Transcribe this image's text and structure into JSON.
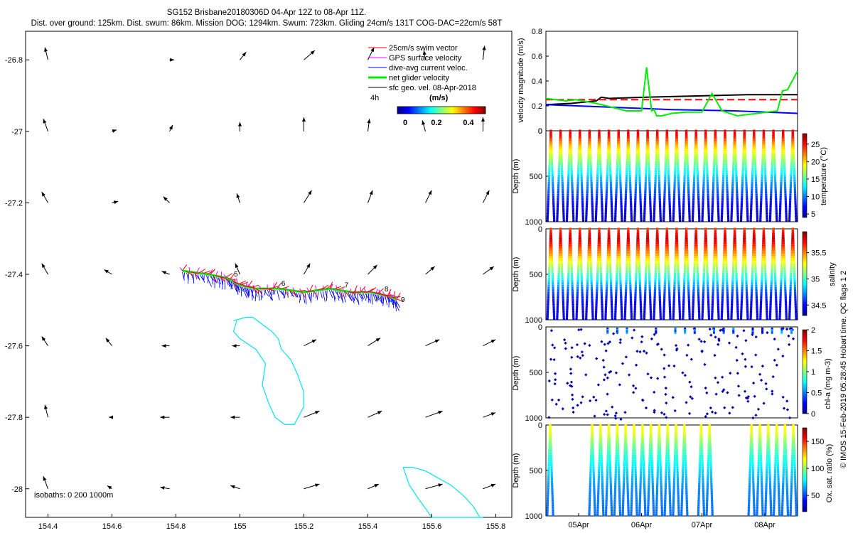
{
  "title": {
    "line1": "SG152 Brisbane20180306D 04-Apr 12Z to 08-Apr 11Z.",
    "line2": "Dist. over ground: 125km. Dist. swum: 86km. Mission DOG: 1294km. Swum: 723km. Gliding 24cm/s 131T COG-DAC=22cm/s 58T"
  },
  "colors": {
    "swim": "#ff0000",
    "gps": "#ff00ff",
    "dac": "#0000ff",
    "net": "#00ee00",
    "sfc": "#000000",
    "isobath": "#00e5ee",
    "vel_black": "#000000",
    "vel_red": "#ff0000",
    "vel_blue": "#0000ff",
    "vel_green": "#00ee00"
  },
  "map": {
    "xticks": [
      "154.4",
      "154.6",
      "154.8",
      "155",
      "155.2",
      "155.4",
      "155.6",
      "155.8"
    ],
    "yticks": [
      "-26.8",
      "-27",
      "-27.2",
      "-27.4",
      "-27.6",
      "-27.8",
      "-28"
    ],
    "xlim": [
      154.33,
      155.85
    ],
    "ylim": [
      -28.08,
      -26.72
    ],
    "legend": [
      {
        "label": "25cm/s swim vector",
        "color_key": "swim"
      },
      {
        "label": "GPS surface velocity",
        "color_key": "gps"
      },
      {
        "label": "dive-avg current veloc.",
        "color_key": "dac"
      },
      {
        "label": "net glider velocity",
        "color_key": "net"
      },
      {
        "label": "sfc geo. vel. 08-Apr-2018",
        "color_key": "sfc"
      }
    ],
    "legend_time_label": "4h",
    "colorbar_unit": "(m/s)",
    "colorbar_ticks": [
      "0",
      "0.2",
      "0.4"
    ],
    "isobaths_label": "isobaths: 0   200  1000m",
    "track_markers": [
      "5",
      "6",
      "7",
      "8",
      "9"
    ],
    "track": {
      "lon": [
        154.82,
        154.9,
        154.96,
        155.0,
        155.05,
        155.12,
        155.2,
        155.28,
        155.35,
        155.41,
        155.46,
        155.49
      ],
      "lat": [
        -27.39,
        -27.4,
        -27.41,
        -27.43,
        -27.44,
        -27.44,
        -27.45,
        -27.44,
        -27.45,
        -27.45,
        -27.46,
        -27.47
      ]
    },
    "isobath_1000m": {
      "lon": [
        154.98,
        155.02,
        155.04,
        155.07,
        155.1,
        155.12,
        155.13,
        155.16,
        155.18,
        155.2,
        155.2,
        155.17,
        155.14,
        155.11,
        155.09,
        155.07,
        155.08,
        155.05,
        155.0,
        154.98,
        154.99
      ],
      "lat": [
        -27.53,
        -27.52,
        -27.52,
        -27.54,
        -27.56,
        -27.58,
        -27.61,
        -27.64,
        -27.68,
        -27.73,
        -27.77,
        -27.82,
        -27.82,
        -27.8,
        -27.76,
        -27.71,
        -27.65,
        -27.61,
        -27.58,
        -27.56,
        -27.53
      ]
    },
    "isobath_200m": {
      "lon": [
        155.51,
        155.54,
        155.58,
        155.62,
        155.66,
        155.7,
        155.73,
        155.75,
        155.76,
        155.6,
        155.56,
        155.53,
        155.51
      ],
      "lat": [
        -27.94,
        -27.94,
        -27.95,
        -27.97,
        -27.99,
        -28.02,
        -28.05,
        -28.08,
        -28.08,
        -28.08,
        -28.03,
        -27.99,
        -27.94
      ]
    },
    "sfc_vectors": {
      "note": "surface geostrophic velocity vectors (u,v in m/s) on map grid",
      "lon": [
        154.4,
        154.6,
        154.78,
        155.0,
        155.2,
        155.4,
        155.58,
        155.76
      ],
      "lat": [
        -26.8,
        -27.0,
        -27.2,
        -27.4,
        -27.6,
        -27.8,
        -28.0
      ],
      "u": [
        [
          -0.02,
          0.0,
          0.03,
          0.04,
          0.07,
          0.04,
          -0.01,
          0.01
        ],
        [
          -0.03,
          0.03,
          0.02,
          0.0,
          0.0,
          0.01,
          -0.02,
          0.0
        ],
        [
          -0.04,
          0.04,
          -0.04,
          -0.02,
          0.05,
          0.03,
          0.04,
          0.04
        ],
        [
          -0.04,
          -0.05,
          -0.05,
          -0.03,
          0.04,
          0.06,
          0.06,
          0.07
        ],
        [
          -0.04,
          -0.04,
          -0.05,
          -0.05,
          0.08,
          0.08,
          0.09,
          0.08
        ],
        [
          -0.02,
          -0.02,
          -0.06,
          -0.06,
          0.1,
          0.09,
          0.11,
          0.08
        ],
        [
          -0.03,
          -0.03,
          -0.06,
          -0.06,
          0.1,
          0.07,
          0.11,
          0.08
        ]
      ],
      "v": [
        [
          0.08,
          0.0,
          0.0,
          0.05,
          0.06,
          0.08,
          0.06,
          0.09
        ],
        [
          0.08,
          0.01,
          0.04,
          0.06,
          0.09,
          0.08,
          0.07,
          0.09
        ],
        [
          0.07,
          0.01,
          0.04,
          0.06,
          0.08,
          0.08,
          0.08,
          0.08
        ],
        [
          0.07,
          0.03,
          0.02,
          0.07,
          0.07,
          0.06,
          0.05,
          0.05
        ],
        [
          0.06,
          0.05,
          0.0,
          0.0,
          0.04,
          0.05,
          0.04,
          0.04
        ],
        [
          0.08,
          0.0,
          0.0,
          0.0,
          0.04,
          0.04,
          0.04,
          0.03
        ],
        [
          0.08,
          0.02,
          0.01,
          0.02,
          0.03,
          0.03,
          0.03,
          0.03
        ]
      ]
    }
  },
  "chart_data": [
    {
      "type": "line",
      "title": "",
      "ylabel": "velocity magnitude (m/s)",
      "ylim": [
        0,
        0.8
      ],
      "yticks": [
        "0",
        "0.2",
        "0.4",
        "0.6",
        "0.8"
      ],
      "xlim": [
        0,
        1
      ],
      "series": [
        {
          "name": "sfc geo. vel.",
          "color_key": "vel_black",
          "dashed": false,
          "x": [
            0.0,
            0.1,
            0.2,
            0.22,
            0.25,
            0.4,
            0.6,
            0.8,
            1.0
          ],
          "y": [
            0.21,
            0.22,
            0.24,
            0.27,
            0.26,
            0.27,
            0.28,
            0.29,
            0.29
          ]
        },
        {
          "name": "swim vector",
          "color_key": "vel_red",
          "dashed": true,
          "x": [
            0.0,
            0.25,
            0.5,
            0.75,
            1.0
          ],
          "y": [
            0.25,
            0.25,
            0.25,
            0.25,
            0.25
          ]
        },
        {
          "name": "dive-avg current",
          "color_key": "vel_blue",
          "dashed": false,
          "x": [
            0.0,
            0.25,
            0.5,
            0.75,
            1.0
          ],
          "y": [
            0.21,
            0.19,
            0.17,
            0.16,
            0.14
          ]
        },
        {
          "name": "net glider velocity",
          "color_key": "vel_green",
          "dashed": false,
          "x": [
            0.0,
            0.04,
            0.08,
            0.12,
            0.2,
            0.24,
            0.28,
            0.32,
            0.38,
            0.4,
            0.42,
            0.43,
            0.44,
            0.46,
            0.5,
            0.56,
            0.62,
            0.66,
            0.7,
            0.76,
            0.8,
            0.88,
            0.92,
            0.94,
            0.96,
            1.0
          ],
          "y": [
            0.26,
            0.25,
            0.24,
            0.25,
            0.22,
            0.2,
            0.18,
            0.16,
            0.16,
            0.51,
            0.16,
            0.17,
            0.12,
            0.12,
            0.14,
            0.15,
            0.15,
            0.3,
            0.16,
            0.12,
            0.13,
            0.15,
            0.16,
            0.32,
            0.33,
            0.48
          ]
        }
      ]
    },
    {
      "type": "scatter",
      "variable": "temperature",
      "ylabel": "Depth (m)",
      "yticks": [
        "0",
        "500",
        "1000"
      ],
      "ylim": [
        1000,
        0
      ],
      "colorbar_label": "temperature (°C)",
      "colorbar_ticks": [
        "5",
        "10",
        "15",
        "20",
        "25"
      ],
      "clim": [
        4,
        28
      ],
      "dives": 26,
      "profile_depth": [
        0,
        50,
        100,
        150,
        200,
        300,
        400,
        500,
        600,
        700,
        800,
        900,
        1000
      ],
      "profile_value": [
        25.5,
        25,
        23,
        21,
        19.5,
        17,
        14.5,
        12,
        10,
        8.5,
        7,
        6,
        5
      ]
    },
    {
      "type": "scatter",
      "variable": "salinity",
      "ylabel": "Depth (m)",
      "yticks": [
        "0",
        "500",
        "1000"
      ],
      "ylim": [
        1000,
        0
      ],
      "colorbar_label": "salinity",
      "colorbar_ticks": [
        "34.5",
        "35",
        "35.5"
      ],
      "clim": [
        34.3,
        35.9
      ],
      "dives": 26,
      "profile_depth": [
        0,
        50,
        100,
        150,
        200,
        300,
        400,
        500,
        600,
        700,
        800,
        900,
        1000
      ],
      "profile_value": [
        35.6,
        35.7,
        35.8,
        35.7,
        35.6,
        35.4,
        35.2,
        35.0,
        34.8,
        34.6,
        34.5,
        34.45,
        34.45
      ]
    },
    {
      "type": "scatter",
      "variable": "chlorophyll",
      "ylabel": "Depth (m)",
      "yticks": [
        "0",
        "500",
        "1000"
      ],
      "ylim": [
        1000,
        0
      ],
      "colorbar_label": "chl-a (mg m-3)",
      "colorbar_ticks": [
        "0",
        "0.5",
        "1",
        "1.5",
        "2"
      ],
      "clim": [
        0,
        2
      ],
      "sparse": true
    },
    {
      "type": "scatter",
      "variable": "oxygen",
      "ylabel": "Depth (m)",
      "yticks": [
        "0",
        "500",
        "1000"
      ],
      "ylim": [
        1000,
        0
      ],
      "xticks": [
        "05Apr",
        "06Apr",
        "07Apr",
        "08Apr"
      ],
      "colorbar_label": "Ox. sat. ratio (%)",
      "colorbar_ticks": [
        "50",
        "100",
        "150"
      ],
      "clim": [
        20,
        175
      ],
      "gaps": [
        [
          0.04,
          0.17
        ],
        [
          0.56,
          0.6
        ],
        [
          0.66,
          0.81
        ]
      ],
      "profile_depth": [
        0,
        100,
        200,
        300,
        500,
        700,
        1000
      ],
      "profile_value": [
        118,
        112,
        98,
        88,
        72,
        60,
        55
      ]
    }
  ],
  "credit": "© IMOS 15-Feb-2019 05:28:45 Hobart time. QC flags 1  2"
}
